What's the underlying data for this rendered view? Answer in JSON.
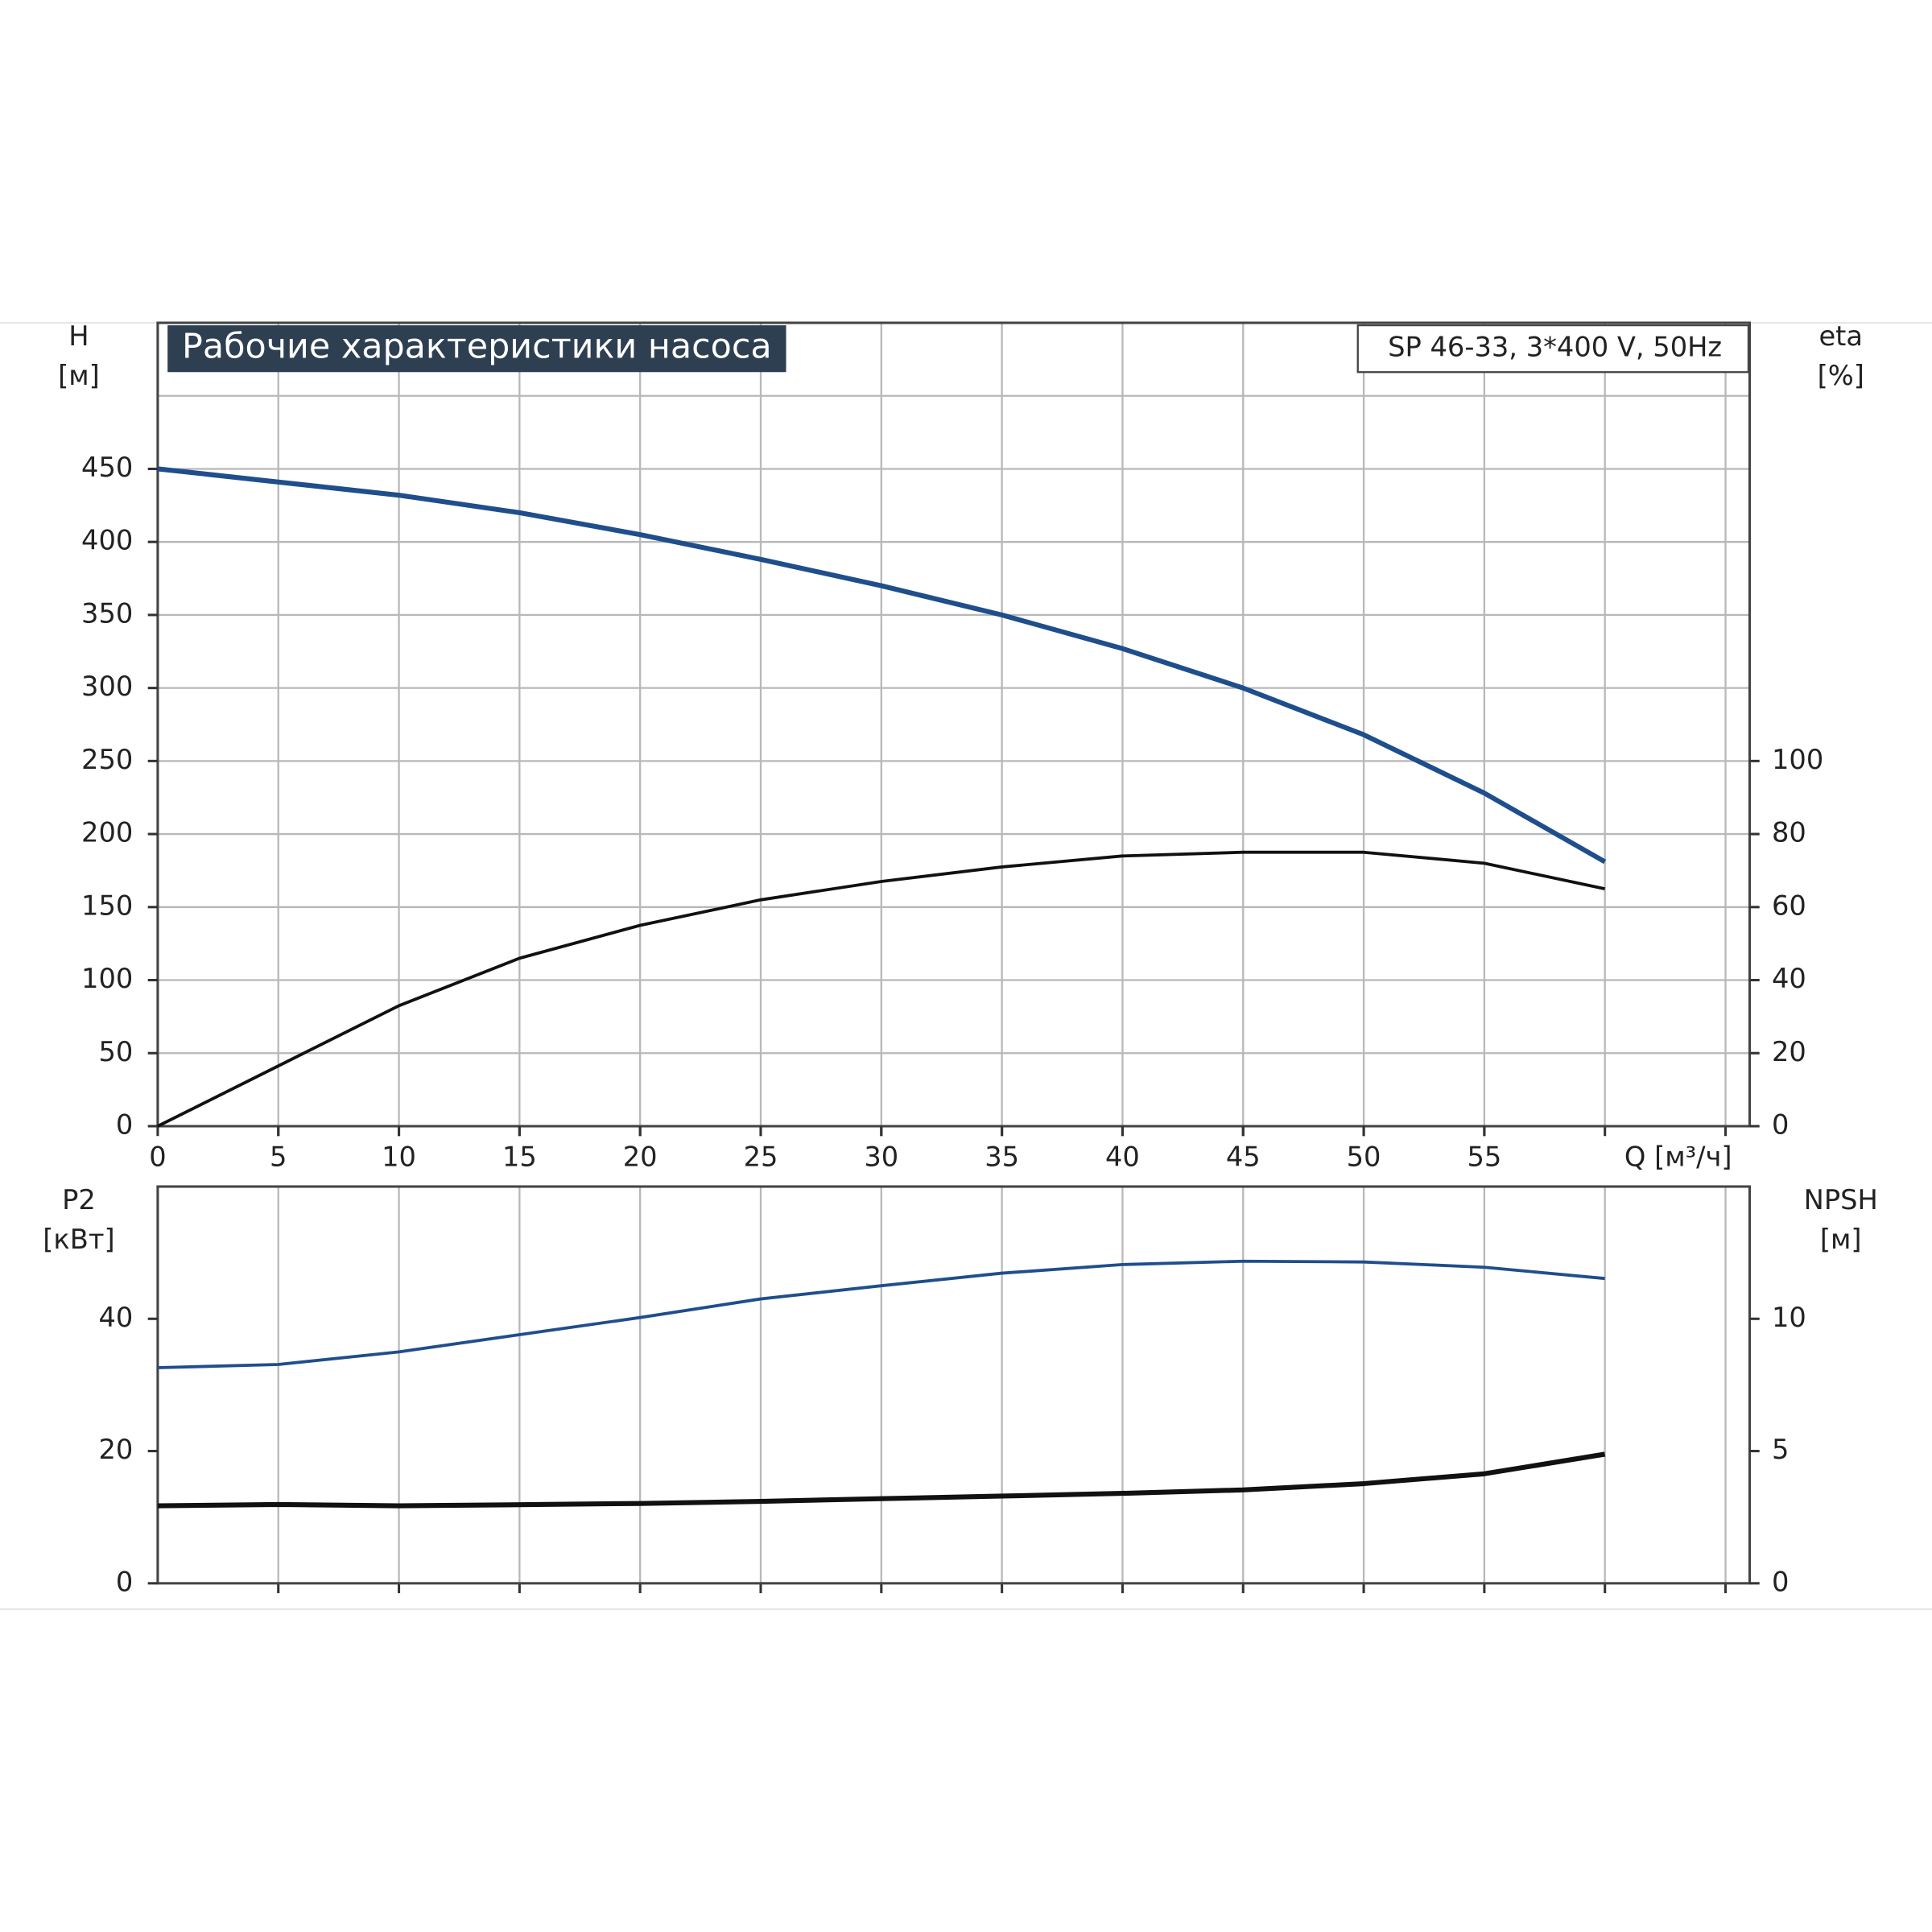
{
  "chart_data": [
    {
      "type": "line",
      "title": "Рабочие характеристики насоса",
      "annotation": "SP 46-33, 3*400 V, 50Hz",
      "ylabel": [
        "H",
        "[м]"
      ],
      "y2label": [
        "eta",
        "[%]"
      ],
      "xlabel": "Q [м³/ч]",
      "x": [
        0,
        5,
        10,
        15,
        20,
        25,
        30,
        35,
        40,
        45,
        50,
        55,
        60
      ],
      "xlim": [
        0,
        66
      ],
      "xticks": [
        0,
        5,
        10,
        15,
        20,
        25,
        30,
        35,
        40,
        45,
        50,
        55
      ],
      "xgrid": [
        5,
        10,
        15,
        20,
        25,
        30,
        35,
        40,
        45,
        50,
        55,
        60,
        65
      ],
      "ylim": [
        0,
        550
      ],
      "yticks": [
        0,
        50,
        100,
        150,
        200,
        250,
        300,
        350,
        400,
        450
      ],
      "ygrid": [
        50,
        100,
        150,
        200,
        250,
        300,
        350,
        400,
        450,
        500
      ],
      "y2lim": [
        0,
        220
      ],
      "y2ticks": [
        0,
        20,
        40,
        60,
        80,
        100
      ],
      "series": [
        {
          "color": "#1f4e8c",
          "values": [
            450,
            441,
            432,
            420,
            405,
            388,
            370,
            350,
            327,
            300,
            268,
            228,
            181
          ]
        },
        {
          "color": "#111111",
          "axis": "y2",
          "values": [
            0,
            16.5,
            33,
            46,
            55,
            62,
            67,
            71,
            74,
            75,
            75,
            72,
            65
          ]
        }
      ]
    },
    {
      "type": "line",
      "ylabel": [
        "P2",
        "[кВт]"
      ],
      "y2label": [
        "NPSH",
        "[м]"
      ],
      "x": [
        0,
        5,
        10,
        15,
        20,
        25,
        30,
        35,
        40,
        45,
        50,
        55,
        60
      ],
      "xlim": [
        0,
        66
      ],
      "xgrid": [
        5,
        10,
        15,
        20,
        25,
        30,
        35,
        40,
        45,
        50,
        55,
        60,
        65
      ],
      "ylim": [
        0,
        60
      ],
      "yticks": [
        0,
        20,
        40
      ],
      "y2lim": [
        0,
        15
      ],
      "y2ticks": [
        0,
        5,
        10
      ],
      "series": [
        {
          "color": "#1f4e8c",
          "values": [
            32.6,
            33.1,
            35,
            37.6,
            40.2,
            43,
            45,
            46.9,
            48.2,
            48.7,
            48.6,
            47.8,
            46.1
          ]
        },
        {
          "color": "#111111",
          "axis": "y2",
          "values": [
            2.93,
            2.98,
            2.93,
            2.97,
            3.02,
            3.1,
            3.2,
            3.3,
            3.4,
            3.53,
            3.77,
            4.14,
            4.88
          ]
        }
      ]
    }
  ]
}
